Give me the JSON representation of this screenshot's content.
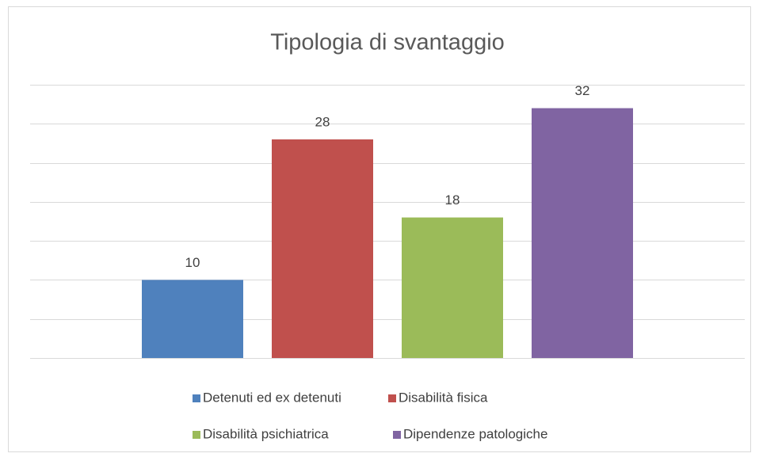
{
  "chart_data": {
    "type": "bar",
    "title": "Tipologia di svantaggio",
    "series": [
      {
        "name": "Detenuti ed ex detenuti",
        "color": "#4f81bd",
        "values": [
          10
        ]
      },
      {
        "name": "Disabilità fisica",
        "color": "#c0504d",
        "values": [
          28
        ]
      },
      {
        "name": "Disabilità psichiatrica",
        "color": "#9bbb59",
        "values": [
          18
        ]
      },
      {
        "name": "Dipendenze patologiche",
        "color": "#8064a2",
        "values": [
          32
        ]
      }
    ],
    "ylim": [
      0,
      35
    ],
    "yticks": [
      0,
      5,
      10,
      15,
      20,
      25,
      30,
      35
    ],
    "grid": true,
    "legend": "bottom"
  }
}
